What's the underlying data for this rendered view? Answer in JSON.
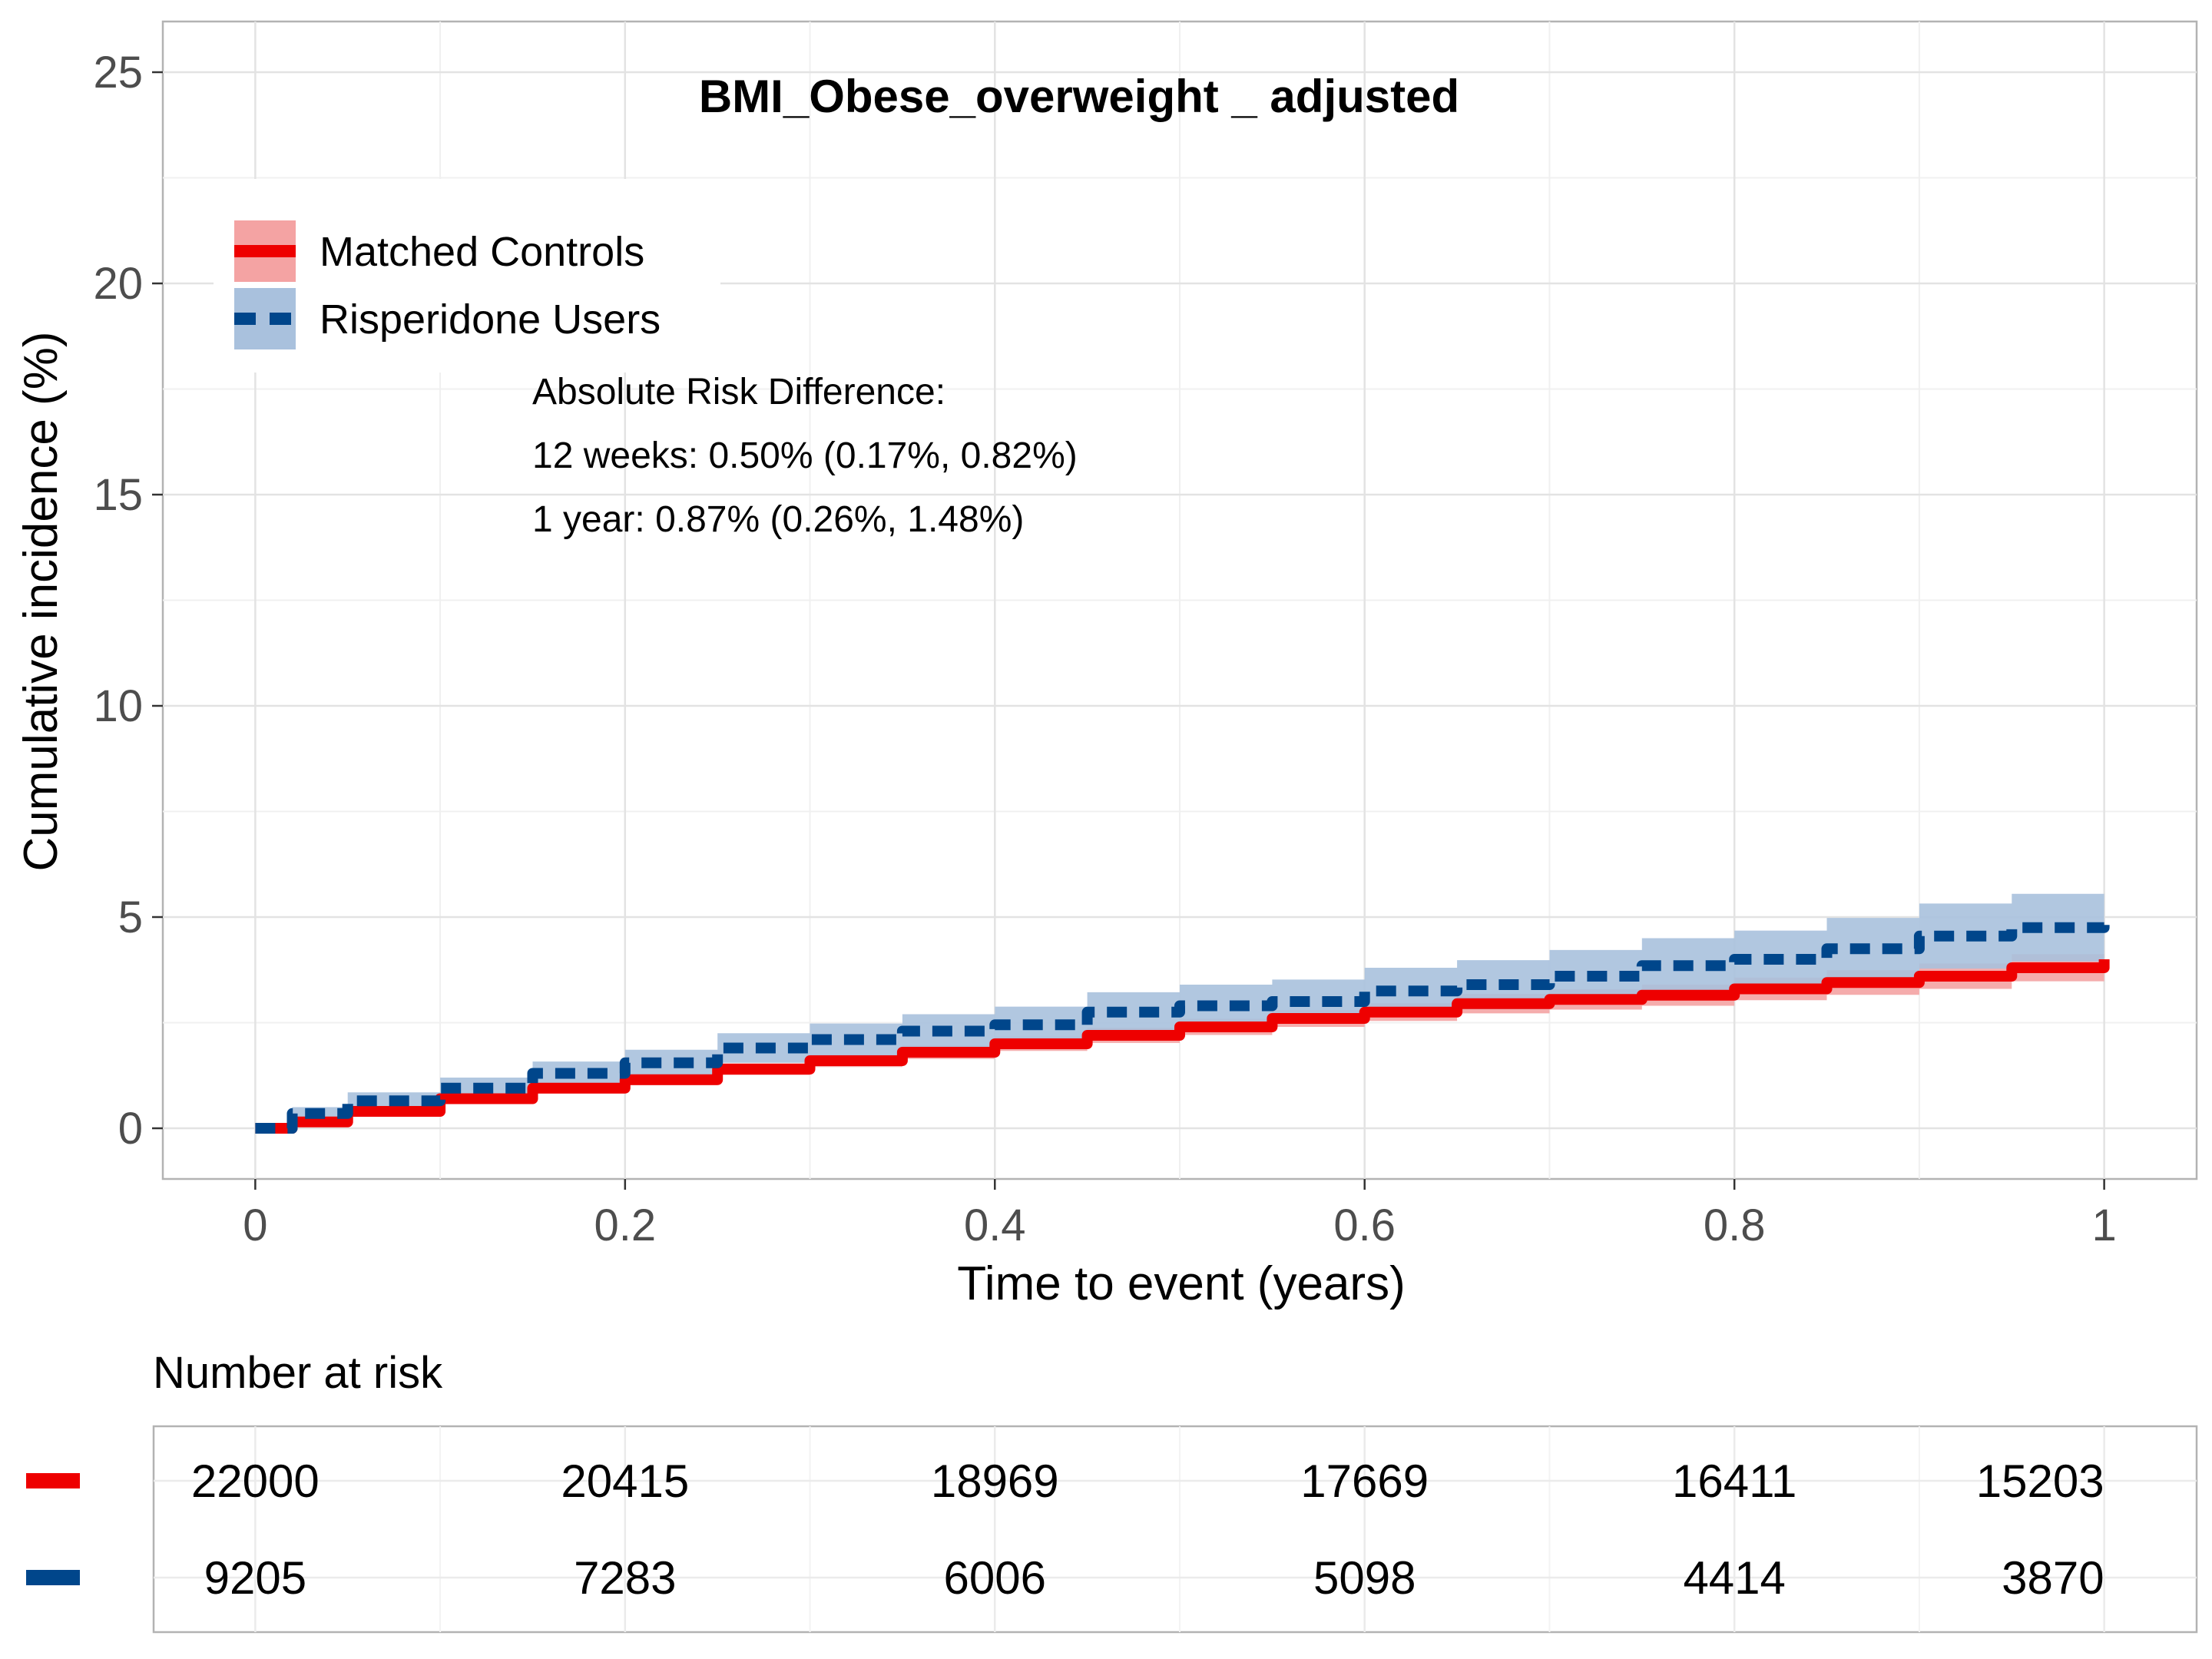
{
  "chart_data": {
    "type": "line",
    "title": "BMI_Obese_overweight _ adjusted",
    "xlabel": "Time to event (years)",
    "ylabel": "Cumulative incidence (%)",
    "xlim": [
      -0.05,
      1.05
    ],
    "ylim": [
      -1.2,
      26.2
    ],
    "x_ticks": [
      0,
      0.2,
      0.4,
      0.6,
      0.8,
      1
    ],
    "x_tick_labels": [
      "0",
      "0.2",
      "0.4",
      "0.6",
      "0.8",
      "1"
    ],
    "y_ticks": [
      0,
      5,
      10,
      15,
      20,
      25
    ],
    "y_tick_labels": [
      "0",
      "5",
      "10",
      "15",
      "20",
      "25"
    ],
    "grid": true,
    "legend_position": "top-left",
    "series": [
      {
        "name": "Matched Controls",
        "color": "#EE0000",
        "band_color": "#F4A3A3",
        "line_style": "solid",
        "x": [
          0,
          0.02,
          0.05,
          0.1,
          0.15,
          0.2,
          0.25,
          0.3,
          0.35,
          0.4,
          0.45,
          0.5,
          0.55,
          0.6,
          0.65,
          0.7,
          0.75,
          0.8,
          0.85,
          0.9,
          0.95,
          1.0
        ],
        "y": [
          0,
          0.15,
          0.4,
          0.7,
          0.95,
          1.15,
          1.4,
          1.6,
          1.8,
          2.0,
          2.2,
          2.4,
          2.6,
          2.75,
          2.95,
          3.05,
          3.15,
          3.3,
          3.45,
          3.6,
          3.8,
          4.0
        ],
        "lower": [
          0,
          0.08,
          0.3,
          0.58,
          0.82,
          1.02,
          1.26,
          1.45,
          1.64,
          1.83,
          2.02,
          2.21,
          2.4,
          2.54,
          2.72,
          2.81,
          2.9,
          3.03,
          3.16,
          3.3,
          3.48,
          3.66
        ],
        "upper": [
          0,
          0.22,
          0.5,
          0.82,
          1.08,
          1.28,
          1.54,
          1.75,
          1.96,
          2.17,
          2.38,
          2.59,
          2.8,
          2.96,
          3.18,
          3.29,
          3.4,
          3.57,
          3.74,
          3.9,
          4.12,
          4.34
        ]
      },
      {
        "name": "Risperidone Users",
        "color": "#00468B",
        "band_color": "#A9C1DD",
        "line_style": "dashed",
        "x": [
          0,
          0.02,
          0.05,
          0.1,
          0.15,
          0.2,
          0.25,
          0.3,
          0.35,
          0.4,
          0.45,
          0.5,
          0.55,
          0.6,
          0.65,
          0.7,
          0.75,
          0.8,
          0.85,
          0.9,
          0.95,
          1.0
        ],
        "y": [
          0,
          0.35,
          0.65,
          0.95,
          1.3,
          1.55,
          1.9,
          2.1,
          2.3,
          2.45,
          2.75,
          2.9,
          3.0,
          3.25,
          3.4,
          3.6,
          3.85,
          4.0,
          4.25,
          4.55,
          4.75,
          4.85
        ],
        "lower": [
          0,
          0.2,
          0.45,
          0.7,
          1.02,
          1.24,
          1.55,
          1.72,
          1.9,
          2.02,
          2.28,
          2.4,
          2.48,
          2.7,
          2.82,
          2.98,
          3.2,
          3.32,
          3.52,
          3.78,
          3.95,
          4.02
        ],
        "upper": [
          0,
          0.5,
          0.85,
          1.2,
          1.58,
          1.86,
          2.25,
          2.48,
          2.7,
          2.88,
          3.22,
          3.4,
          3.52,
          3.8,
          3.98,
          4.22,
          4.5,
          4.68,
          4.98,
          5.32,
          5.55,
          5.68
        ]
      }
    ],
    "annotation": [
      "Absolute Risk Difference:",
      "12 weeks: 0.50% (0.17%, 0.82%)",
      "1 year: 0.87% (0.26%, 1.48%)"
    ],
    "risk_table": {
      "title": "Number at risk",
      "times": [
        0,
        0.2,
        0.4,
        0.6,
        0.8,
        1
      ],
      "rows": [
        {
          "series": "Matched Controls",
          "color": "#EE0000",
          "values": [
            "22000",
            "20415",
            "18969",
            "17669",
            "16411",
            "15203"
          ]
        },
        {
          "series": "Risperidone Users",
          "color": "#00468B",
          "values": [
            "9205",
            "7283",
            "6006",
            "5098",
            "4414",
            "3870"
          ]
        }
      ]
    }
  }
}
